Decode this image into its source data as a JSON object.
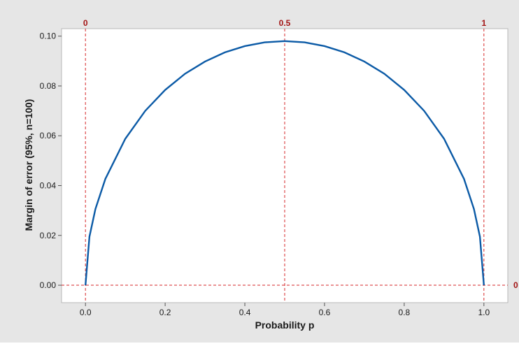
{
  "chart_data": {
    "type": "line",
    "title": "",
    "xlabel": "Probability p",
    "ylabel": "Margin of error (95%, n=100)",
    "xlim": [
      -0.06,
      1.06
    ],
    "ylim": [
      -0.007,
      0.103
    ],
    "x_ticks": [
      0.0,
      0.2,
      0.4,
      0.6,
      0.8,
      1.0
    ],
    "x_tick_labels": [
      "0.0",
      "0.2",
      "0.4",
      "0.6",
      "0.8",
      "1.0"
    ],
    "y_ticks": [
      0.0,
      0.02,
      0.04,
      0.06,
      0.08,
      0.1
    ],
    "y_tick_labels": [
      "0.00",
      "0.02",
      "0.04",
      "0.06",
      "0.08",
      "0.10"
    ],
    "reference_lines": {
      "vertical": [
        {
          "value": 0,
          "label": "0"
        },
        {
          "value": 0.5,
          "label": "0.5"
        },
        {
          "value": 1,
          "label": "1"
        }
      ],
      "horizontal": [
        {
          "value": 0,
          "label": "0"
        }
      ]
    },
    "series": [
      {
        "x": [
          0.0,
          0.01,
          0.025,
          0.05,
          0.1,
          0.15,
          0.2,
          0.25,
          0.3,
          0.35,
          0.4,
          0.45,
          0.5,
          0.55,
          0.6,
          0.65,
          0.7,
          0.75,
          0.8,
          0.85,
          0.9,
          0.95,
          0.975,
          0.99,
          1.0
        ],
        "values": [
          0.0,
          0.0195,
          0.0306,
          0.0427,
          0.0588,
          0.07,
          0.0784,
          0.0849,
          0.0898,
          0.0935,
          0.096,
          0.0975,
          0.098,
          0.0975,
          0.096,
          0.0935,
          0.0898,
          0.0849,
          0.0784,
          0.07,
          0.0588,
          0.0427,
          0.0306,
          0.0195,
          0.0
        ]
      }
    ],
    "grid": false
  },
  "colors": {
    "background": "#e6e6e6",
    "plot_background": "#ffffff",
    "line": "#0b5aa6",
    "reference_line": "#d62728",
    "reference_label": "#a31515"
  }
}
